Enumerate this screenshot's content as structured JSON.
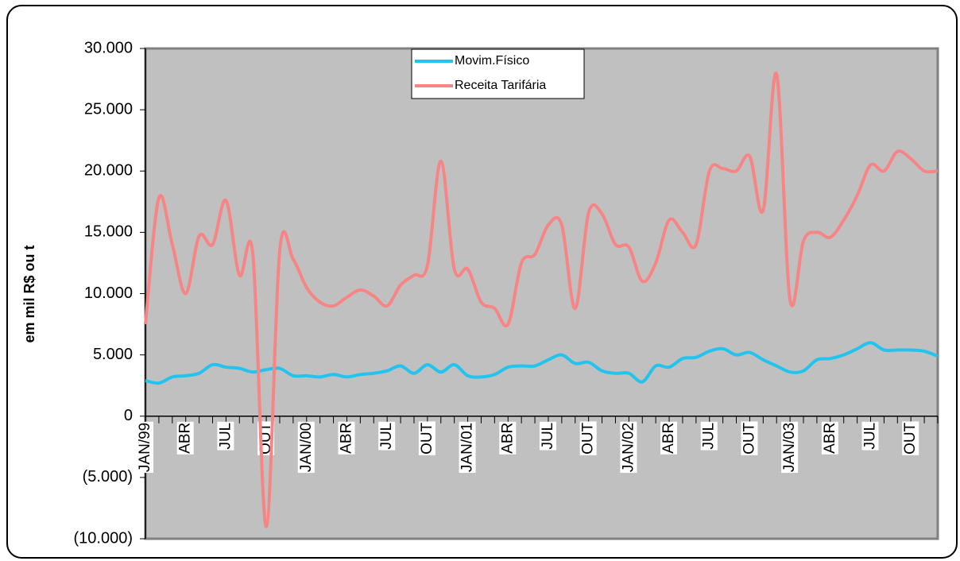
{
  "chart_data": {
    "type": "line",
    "y_label": "em mil R$ ou t",
    "categories": [
      "JAN/99",
      null,
      null,
      "ABR",
      null,
      null,
      "JUL",
      null,
      null,
      "OUT",
      null,
      null,
      "JAN/00",
      null,
      null,
      "ABR",
      null,
      null,
      "JUL",
      null,
      null,
      "OUT",
      null,
      null,
      "JAN/01",
      null,
      null,
      "ABR",
      null,
      null,
      "JUL",
      null,
      null,
      "OUT",
      null,
      null,
      "JAN/02",
      null,
      null,
      "ABR",
      null,
      null,
      "JUL",
      null,
      null,
      "OUT",
      null,
      null,
      "JAN/03",
      null,
      null,
      "ABR",
      null,
      null,
      "JUL",
      null,
      null,
      "OUT",
      null,
      null
    ],
    "series": [
      {
        "name": "Movim.Físico",
        "color": "#22c4ee",
        "values": [
          2900,
          2700,
          3200,
          3300,
          3500,
          4200,
          4000,
          3900,
          3600,
          3800,
          3900,
          3300,
          3300,
          3200,
          3400,
          3200,
          3400,
          3500,
          3700,
          4100,
          3500,
          4200,
          3600,
          4200,
          3300,
          3200,
          3400,
          4000,
          4100,
          4100,
          4600,
          5000,
          4300,
          4400,
          3700,
          3500,
          3500,
          2800,
          4100,
          4000,
          4700,
          4800,
          5300,
          5500,
          5000,
          5200,
          4600,
          4100,
          3600,
          3700,
          4600,
          4700,
          5000,
          5500,
          6000,
          5400,
          5400,
          5400,
          5300,
          4900
        ]
      },
      {
        "name": "Receita Tarifária",
        "color": "#f78585",
        "values": [
          7500,
          17800,
          14000,
          10000,
          14700,
          14000,
          17600,
          11500,
          13200,
          -9000,
          13500,
          12800,
          10500,
          9300,
          9000,
          9700,
          10300,
          9800,
          9000,
          10700,
          11500,
          12300,
          20800,
          12000,
          12000,
          9300,
          8800,
          7500,
          12500,
          13200,
          15600,
          15600,
          8800,
          16600,
          16500,
          14000,
          13800,
          11000,
          12500,
          16000,
          15000,
          14000,
          20000,
          20200,
          20000,
          21200,
          16800,
          27900,
          9500,
          14300,
          15000,
          14600,
          16000,
          18000,
          20500,
          20000,
          21600,
          21000,
          20000,
          20000
        ]
      }
    ],
    "ylim": [
      -10000,
      30000
    ],
    "yticks": [
      {
        "value": -10000,
        "label": "(10.000)"
      },
      {
        "value": -5000,
        "label": "(5.000)"
      },
      0,
      {
        "value": 5000,
        "label": "5.000"
      },
      {
        "value": 10000,
        "label": "10.000"
      },
      {
        "value": 15000,
        "label": "15.000"
      },
      {
        "value": 20000,
        "label": "20.000"
      },
      {
        "value": 25000,
        "label": "25.000"
      },
      {
        "value": 30000,
        "label": "30.000"
      }
    ],
    "plot_background": "#c0c0c0",
    "legend": "top"
  }
}
